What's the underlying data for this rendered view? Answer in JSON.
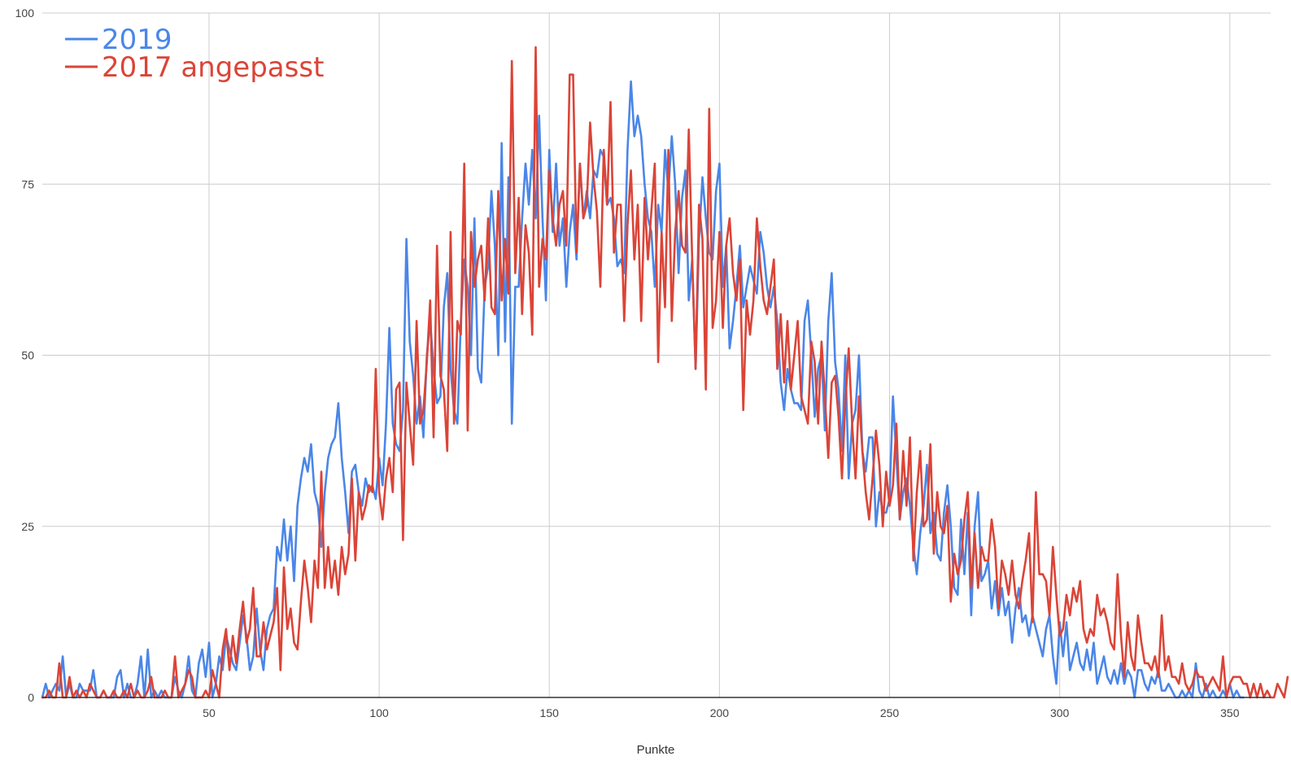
{
  "chart_data": {
    "type": "line",
    "title": "",
    "xlabel": "Punkte",
    "ylabel": "",
    "xlim": [
      1,
      362
    ],
    "ylim": [
      0,
      100
    ],
    "x_ticks": [
      50,
      100,
      150,
      200,
      250,
      300,
      350
    ],
    "y_ticks": [
      0,
      25,
      50,
      75,
      100
    ],
    "grid": true,
    "legend_position": "top-left",
    "x_start": 1,
    "series": [
      {
        "name": "2019",
        "color": "#4a86e8",
        "values": [
          0,
          2,
          0,
          1,
          2,
          1,
          6,
          0,
          2,
          0,
          0,
          2,
          1,
          1,
          1,
          4,
          0,
          0,
          1,
          0,
          0,
          0,
          3,
          4,
          0,
          2,
          0,
          0,
          2,
          6,
          0,
          7,
          0,
          1,
          0,
          1,
          0,
          0,
          0,
          3,
          1,
          0,
          2,
          6,
          1,
          0,
          5,
          7,
          3,
          8,
          0,
          2,
          6,
          4,
          9,
          7,
          5,
          4,
          8,
          12,
          9,
          4,
          6,
          13,
          7,
          4,
          10,
          12,
          13,
          22,
          20,
          26,
          20,
          25,
          17,
          28,
          32,
          35,
          33,
          37,
          30,
          28,
          22,
          30,
          35,
          37,
          38,
          43,
          35,
          30,
          24,
          33,
          34,
          30,
          28,
          32,
          30,
          31,
          29,
          35,
          31,
          40,
          54,
          40,
          37,
          36,
          42,
          67,
          52,
          47,
          40,
          44,
          38,
          50,
          55,
          48,
          43,
          44,
          57,
          62,
          48,
          42,
          40,
          55,
          64,
          60,
          50,
          70,
          48,
          46,
          60,
          63,
          74,
          66,
          50,
          81,
          52,
          76,
          40,
          60,
          60,
          70,
          78,
          72,
          80,
          70,
          85,
          70,
          58,
          80,
          68,
          78,
          66,
          70,
          60,
          68,
          72,
          64,
          78,
          70,
          74,
          70,
          77,
          76,
          80,
          79,
          72,
          73,
          70,
          63,
          64,
          62,
          80,
          90,
          82,
          85,
          82,
          75,
          70,
          68,
          60,
          72,
          68,
          80,
          74,
          82,
          75,
          62,
          73,
          77,
          58,
          64,
          48,
          67,
          76,
          70,
          65,
          64,
          74,
          78,
          60,
          66,
          51,
          55,
          60,
          66,
          57,
          60,
          63,
          61,
          59,
          68,
          65,
          60,
          57,
          60,
          55,
          46,
          42,
          48,
          45,
          43,
          43,
          42,
          55,
          58,
          50,
          41,
          48,
          50,
          39,
          55,
          62,
          49,
          45,
          36,
          50,
          32,
          40,
          42,
          50,
          36,
          33,
          38,
          38,
          25,
          30,
          27,
          27,
          29,
          44,
          35,
          26,
          30,
          32,
          28,
          22,
          18,
          24,
          28,
          34,
          24,
          27,
          21,
          20,
          27,
          31,
          25,
          16,
          15,
          26,
          18,
          27,
          12,
          25,
          30,
          17,
          18,
          20,
          13,
          17,
          12,
          16,
          12,
          14,
          8,
          13,
          16,
          11,
          12,
          9,
          12,
          10,
          8,
          6,
          10,
          12,
          6,
          2,
          11,
          6,
          11,
          4,
          6,
          8,
          5,
          4,
          7,
          4,
          8,
          2,
          4,
          6,
          3,
          2,
          4,
          2,
          5,
          2,
          4,
          3,
          0,
          4,
          4,
          2,
          1,
          3,
          2,
          4,
          1,
          1,
          2,
          1,
          0,
          0,
          1,
          0,
          1,
          0,
          5,
          1,
          0,
          2,
          0,
          1,
          0,
          0,
          1,
          0,
          2,
          0,
          1,
          0,
          0
        ]
      },
      {
        "name": "2017 angepasst",
        "color": "#db4437",
        "values": [
          0,
          0,
          1,
          0,
          0,
          5,
          0,
          0,
          3,
          0,
          1,
          0,
          1,
          0,
          2,
          1,
          0,
          0,
          1,
          0,
          0,
          1,
          0,
          0,
          1,
          0,
          2,
          0,
          1,
          0,
          0,
          1,
          3,
          0,
          0,
          0,
          1,
          0,
          0,
          6,
          0,
          1,
          2,
          4,
          3,
          0,
          0,
          0,
          1,
          0,
          4,
          2,
          0,
          7,
          10,
          4,
          9,
          5,
          10,
          14,
          8,
          10,
          16,
          6,
          6,
          11,
          7,
          9,
          11,
          16,
          4,
          19,
          10,
          13,
          8,
          7,
          14,
          20,
          16,
          11,
          20,
          16,
          33,
          16,
          22,
          16,
          20,
          15,
          22,
          18,
          21,
          32,
          20,
          30,
          26,
          28,
          31,
          30,
          48,
          30,
          26,
          32,
          35,
          30,
          45,
          46,
          23,
          46,
          40,
          34,
          55,
          40,
          42,
          49,
          58,
          38,
          66,
          47,
          45,
          36,
          68,
          40,
          55,
          53,
          78,
          39,
          68,
          60,
          64,
          66,
          58,
          70,
          57,
          56,
          74,
          58,
          67,
          59,
          93,
          62,
          73,
          56,
          69,
          65,
          53,
          95,
          60,
          67,
          64,
          77,
          70,
          66,
          72,
          74,
          66,
          91,
          91,
          65,
          78,
          70,
          72,
          84,
          76,
          71,
          60,
          80,
          72,
          87,
          65,
          72,
          72,
          55,
          69,
          77,
          64,
          72,
          55,
          73,
          64,
          71,
          78,
          49,
          68,
          57,
          80,
          55,
          68,
          74,
          66,
          65,
          83,
          64,
          48,
          72,
          67,
          45,
          86,
          54,
          58,
          68,
          54,
          66,
          70,
          62,
          58,
          64,
          42,
          58,
          53,
          58,
          70,
          63,
          58,
          56,
          60,
          64,
          48,
          56,
          46,
          55,
          45,
          50,
          55,
          44,
          42,
          40,
          52,
          49,
          40,
          52,
          44,
          35,
          46,
          47,
          41,
          32,
          43,
          51,
          40,
          32,
          44,
          36,
          30,
          26,
          32,
          39,
          34,
          25,
          33,
          28,
          31,
          40,
          26,
          36,
          28,
          38,
          20,
          30,
          36,
          25,
          26,
          37,
          21,
          30,
          25,
          24,
          28,
          14,
          21,
          18,
          20,
          26,
          30,
          16,
          24,
          16,
          22,
          20,
          20,
          26,
          22,
          13,
          20,
          18,
          15,
          20,
          15,
          13,
          17,
          20,
          24,
          11,
          30,
          18,
          18,
          17,
          12,
          22,
          15,
          9,
          10,
          15,
          12,
          16,
          14,
          17,
          10,
          8,
          10,
          9,
          15,
          12,
          13,
          11,
          8,
          7,
          18,
          9,
          3,
          11,
          6,
          4,
          12,
          8,
          5,
          5,
          4,
          6,
          3,
          12,
          4,
          6,
          3,
          3,
          2,
          5,
          2,
          1,
          2,
          4,
          3,
          3,
          1,
          2,
          3,
          2,
          1,
          6,
          0,
          2,
          3,
          3,
          3,
          2,
          2,
          0,
          2,
          0,
          2,
          0,
          1,
          0,
          0,
          2,
          1,
          0,
          3
        ]
      }
    ]
  }
}
